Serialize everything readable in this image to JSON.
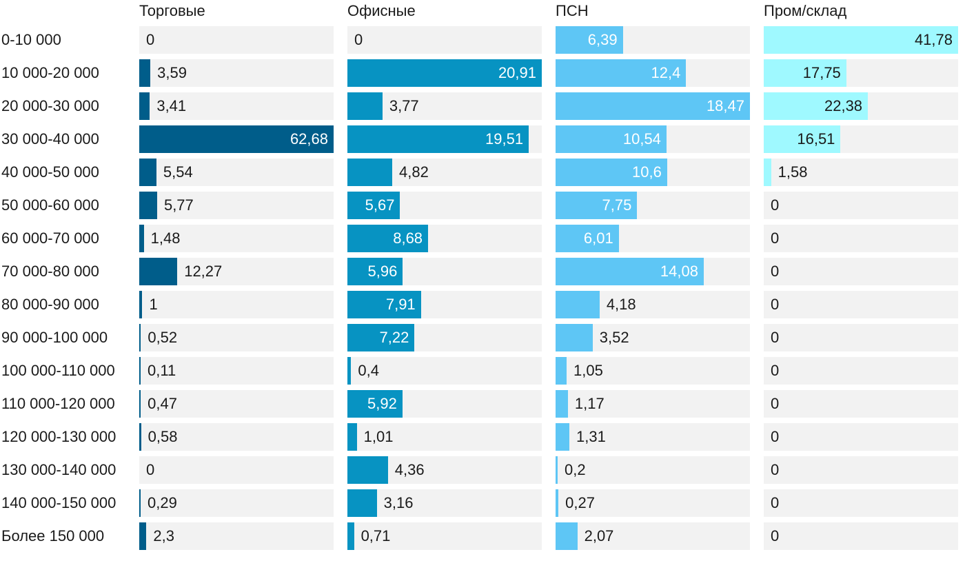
{
  "chart_data": {
    "type": "bar",
    "orientation": "horizontal",
    "layout": "small-multiples",
    "title": "",
    "xlabel": "",
    "ylabel": "",
    "categories": [
      "0-10 000",
      "10 000-20 000",
      "20 000-30 000",
      "30 000-40 000",
      "40 000-50 000",
      "50 000-60 000",
      "60 000-70 000",
      "70 000-80 000",
      "80 000-90 000",
      "90 000-100 000",
      "100 000-110 000",
      "110 000-120 000",
      "120 000-130 000",
      "130 000-140 000",
      "140 000-150 000",
      "Более 150 000"
    ],
    "series": [
      {
        "name": "Торговые",
        "color": "#005d8a",
        "values": [
          0,
          3.59,
          3.41,
          62.68,
          5.54,
          5.77,
          1.48,
          12.27,
          1,
          0.52,
          0.11,
          0.47,
          0.58,
          0,
          0.29,
          2.3
        ],
        "labels": [
          "0",
          "3,59",
          "3,41",
          "62,68",
          "5,54",
          "5,77",
          "1,48",
          "12,27",
          "1",
          "0,52",
          "0,11",
          "0,47",
          "0,58",
          "0",
          "0,29",
          "2,3"
        ]
      },
      {
        "name": "Офисные",
        "color": "#0793c2",
        "values": [
          0,
          20.91,
          3.77,
          19.51,
          4.82,
          5.67,
          8.68,
          5.96,
          7.91,
          7.22,
          0.4,
          5.92,
          1.01,
          4.36,
          3.16,
          0.71
        ],
        "labels": [
          "0",
          "20,91",
          "3,77",
          "19,51",
          "4,82",
          "5,67",
          "8,68",
          "5,96",
          "7,91",
          "7,22",
          "0,4",
          "5,92",
          "1,01",
          "4,36",
          "3,16",
          "0,71"
        ]
      },
      {
        "name": "ПСН",
        "color": "#5ec6f5",
        "values": [
          6.39,
          12.4,
          18.47,
          10.54,
          10.6,
          7.75,
          6.01,
          14.08,
          4.18,
          3.52,
          1.05,
          1.17,
          1.31,
          0.2,
          0.27,
          2.07
        ],
        "labels": [
          "6,39",
          "12,4",
          "18,47",
          "10,54",
          "10,6",
          "7,75",
          "6,01",
          "14,08",
          "4,18",
          "3,52",
          "1,05",
          "1,17",
          "1,31",
          "0,2",
          "0,27",
          "2,07"
        ]
      },
      {
        "name": "Пром/склад",
        "color": "#9ff9ff",
        "values": [
          41.78,
          17.75,
          22.38,
          16.51,
          1.58,
          0,
          0,
          0,
          0,
          0,
          0,
          0,
          0,
          0,
          0,
          0
        ],
        "labels": [
          "41,78",
          "17,75",
          "22,38",
          "16,51",
          "1,58",
          "0",
          "0",
          "0",
          "0",
          "0",
          "0",
          "0",
          "0",
          "0",
          "0",
          "0"
        ]
      }
    ],
    "grid": false,
    "legend": "none"
  }
}
